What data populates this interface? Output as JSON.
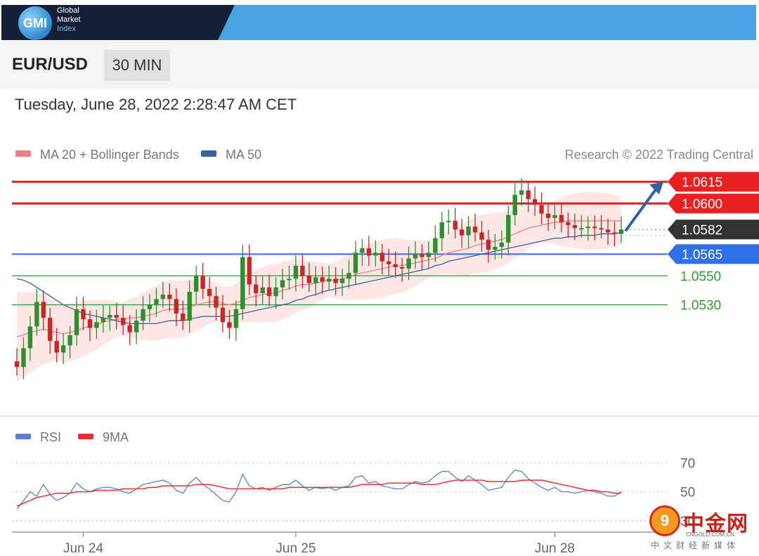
{
  "header": {
    "logo_mark": "GMI",
    "logo_lines": [
      "Global",
      "Market",
      "Index"
    ]
  },
  "instrument": {
    "pair": "EUR/USD",
    "timeframe": "30 MIN"
  },
  "timestamp": "Tuesday, June 28, 2022 2:28:47 AM CET",
  "watermark": {
    "mark": "9",
    "title": "中金网",
    "url": "CNGOLD.COM.CN",
    "tagline": "中文财经新媒体"
  },
  "chart_data": [
    {
      "type": "candlestick",
      "legend": [
        {
          "name": "MA 20 + Bollinger Bands",
          "color": "#f08080"
        },
        {
          "name": "MA 50",
          "color": "#3a5fa0"
        }
      ],
      "credit": "Research © 2022 Trading Central",
      "x_ticks": [
        {
          "label": "Jun 24",
          "index": 10
        },
        {
          "label": "Jun 25",
          "index": 42
        },
        {
          "label": "Jun 28",
          "index": 81
        }
      ],
      "ylim": [
        1.0455,
        1.0625
      ],
      "levels": [
        {
          "value": 1.0615,
          "label": "1.0615",
          "type": "resistance",
          "color": "#e82020"
        },
        {
          "value": 1.06,
          "label": "1.0600",
          "type": "resistance",
          "color": "#e82020"
        },
        {
          "value": 1.0582,
          "label": "1.0582",
          "type": "current",
          "color": "#333333"
        },
        {
          "value": 1.0565,
          "label": "1.0565",
          "type": "pivot",
          "color": "#2f6fe8"
        },
        {
          "value": 1.055,
          "label": "1.0550",
          "type": "support",
          "color": "#2e9e2e"
        },
        {
          "value": 1.053,
          "label": "1.0530",
          "type": "support",
          "color": "#2e9e2e"
        }
      ],
      "forecast_arrow": {
        "from": 1.0582,
        "to": 1.0615
      },
      "closes": [
        1.0487,
        1.05,
        1.0515,
        1.0532,
        1.0521,
        1.0505,
        1.0497,
        1.0502,
        1.0509,
        1.0527,
        1.052,
        1.0514,
        1.0518,
        1.0521,
        1.0523,
        1.0521,
        1.0516,
        1.0511,
        1.0519,
        1.0527,
        1.053,
        1.0534,
        1.0537,
        1.0534,
        1.0524,
        1.0519,
        1.0539,
        1.055,
        1.0541,
        1.0536,
        1.0528,
        1.0518,
        1.0514,
        1.0527,
        1.0563,
        1.0544,
        1.0538,
        1.0542,
        1.0536,
        1.0542,
        1.0547,
        1.0548,
        1.0557,
        1.055,
        1.0545,
        1.0549,
        1.0546,
        1.0548,
        1.0545,
        1.0548,
        1.0552,
        1.0566,
        1.0569,
        1.0564,
        1.0566,
        1.056,
        1.0558,
        1.0556,
        1.0555,
        1.0562,
        1.0565,
        1.0563,
        1.0566,
        1.0576,
        1.0587,
        1.0588,
        1.0582,
        1.0578,
        1.0584,
        1.058,
        1.0575,
        1.0568,
        1.057,
        1.0573,
        1.0592,
        1.0606,
        1.0609,
        1.0603,
        1.0599,
        1.0593,
        1.059,
        1.0592,
        1.0587,
        1.0585,
        1.0583,
        1.0583,
        1.0584,
        1.0583,
        1.0582,
        1.058,
        1.0579,
        1.0582
      ],
      "ma20": [
        1.0508,
        1.0509,
        1.0511,
        1.0512,
        1.0513,
        1.0512,
        1.0511,
        1.051,
        1.0511,
        1.0512,
        1.0514,
        1.0515,
        1.0516,
        1.0518,
        1.0519,
        1.052,
        1.052,
        1.0521,
        1.0521,
        1.0522,
        1.0523,
        1.0524,
        1.0526,
        1.0527,
        1.0527,
        1.0527,
        1.0528,
        1.053,
        1.0531,
        1.0532,
        1.0532,
        1.0531,
        1.053,
        1.0531,
        1.0533,
        1.0535,
        1.0536,
        1.0537,
        1.0538,
        1.0538,
        1.054,
        1.0541,
        1.0543,
        1.0544,
        1.0544,
        1.0545,
        1.0546,
        1.0547,
        1.0547,
        1.0548,
        1.0549,
        1.0551,
        1.0552,
        1.0553,
        1.0554,
        1.0555,
        1.0556,
        1.0557,
        1.0557,
        1.0558,
        1.0559,
        1.056,
        1.0561,
        1.0562,
        1.0564,
        1.0566,
        1.0567,
        1.0568,
        1.0569,
        1.0571,
        1.0572,
        1.0573,
        1.0574,
        1.0575,
        1.0577,
        1.0579,
        1.0581,
        1.0583,
        1.0584,
        1.0585,
        1.0586,
        1.0587,
        1.0587,
        1.0588,
        1.0588,
        1.0588,
        1.0588,
        1.0588,
        1.0588,
        1.0588,
        1.0588,
        1.0588
      ],
      "ma50": [
        1.0548,
        1.0547,
        1.0545,
        1.0542,
        1.0539,
        1.0536,
        1.0533,
        1.053,
        1.0528,
        1.0526,
        1.0524,
        1.0523,
        1.0522,
        1.0521,
        1.052,
        1.0519,
        1.0518,
        1.0517,
        1.0517,
        1.0517,
        1.0517,
        1.0517,
        1.0518,
        1.0519,
        1.0519,
        1.0519,
        1.052,
        1.0521,
        1.0522,
        1.0522,
        1.0522,
        1.0522,
        1.0522,
        1.0523,
        1.0524,
        1.0525,
        1.0526,
        1.0527,
        1.0528,
        1.0529,
        1.053,
        1.0531,
        1.0533,
        1.0534,
        1.0536,
        1.0537,
        1.0539,
        1.054,
        1.0541,
        1.0542,
        1.0543,
        1.0544,
        1.0545,
        1.0546,
        1.0547,
        1.0548,
        1.0549,
        1.055,
        1.0551,
        1.0552,
        1.0553,
        1.0554,
        1.0555,
        1.0557,
        1.0558,
        1.056,
        1.0561,
        1.0562,
        1.0563,
        1.0564,
        1.0565,
        1.0566,
        1.0567,
        1.0568,
        1.0569,
        1.057,
        1.0571,
        1.0572,
        1.0573,
        1.0574,
        1.0575,
        1.0576,
        1.0576,
        1.0577,
        1.0577,
        1.0578,
        1.0578,
        1.0578,
        1.0579,
        1.0579,
        1.0579,
        1.058
      ]
    },
    {
      "type": "line",
      "legend": [
        {
          "name": "RSI",
          "color": "#5b7fd6"
        },
        {
          "name": "9MA",
          "color": "#e53030"
        }
      ],
      "y_ticks": [
        70,
        50,
        30
      ],
      "ylim": [
        28,
        75
      ],
      "rsi": [
        38,
        44,
        50,
        47,
        55,
        48,
        44,
        46,
        49,
        56,
        52,
        50,
        52,
        53,
        53,
        52,
        50,
        49,
        52,
        55,
        56,
        57,
        58,
        56,
        51,
        49,
        56,
        60,
        55,
        52,
        48,
        44,
        43,
        50,
        62,
        54,
        52,
        53,
        51,
        53,
        55,
        55,
        58,
        54,
        51,
        53,
        52,
        53,
        51,
        53,
        54,
        60,
        61,
        56,
        57,
        54,
        53,
        52,
        52,
        55,
        57,
        56,
        57,
        61,
        64,
        64,
        60,
        57,
        61,
        58,
        55,
        51,
        52,
        53,
        60,
        65,
        64,
        59,
        56,
        53,
        51,
        53,
        50,
        50,
        49,
        50,
        51,
        50,
        49,
        47,
        47,
        50
      ],
      "rsi_ma9": [
        40,
        42,
        44,
        46,
        47,
        48,
        49,
        49,
        49,
        50,
        50,
        50,
        51,
        51,
        51,
        51,
        52,
        52,
        52,
        52,
        53,
        53,
        54,
        54,
        54,
        54,
        54,
        55,
        55,
        55,
        54,
        53,
        52,
        52,
        52,
        52,
        52,
        52,
        52,
        52,
        52,
        53,
        53,
        53,
        53,
        53,
        53,
        53,
        53,
        53,
        53,
        54,
        55,
        55,
        55,
        55,
        56,
        56,
        56,
        56,
        56,
        55,
        55,
        55,
        56,
        57,
        58,
        58,
        58,
        58,
        58,
        57,
        57,
        57,
        57,
        57,
        58,
        58,
        58,
        58,
        57,
        56,
        55,
        54,
        53,
        52,
        51,
        51,
        50,
        50,
        49,
        49
      ]
    }
  ]
}
